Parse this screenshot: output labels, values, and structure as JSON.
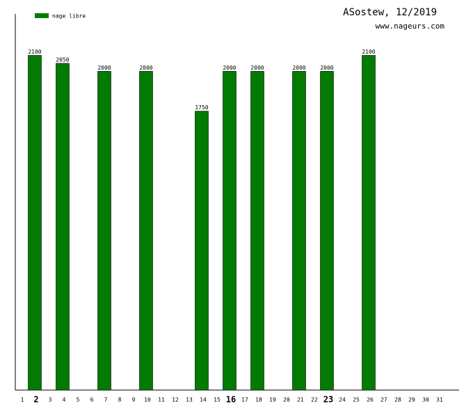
{
  "chart_data": {
    "type": "bar",
    "title": "ASostew, 12/2019",
    "subtitle": "www.nageurs.com",
    "categories": [
      "1",
      "2",
      "3",
      "4",
      "5",
      "6",
      "7",
      "8",
      "9",
      "10",
      "11",
      "12",
      "13",
      "14",
      "15",
      "16",
      "17",
      "18",
      "19",
      "20",
      "21",
      "22",
      "23",
      "24",
      "25",
      "26",
      "27",
      "28",
      "29",
      "30",
      "31"
    ],
    "series": [
      {
        "name": "nage libre",
        "color": "#037b03",
        "values": [
          null,
          2100,
          null,
          2050,
          null,
          null,
          2000,
          null,
          null,
          2000,
          null,
          null,
          null,
          1750,
          null,
          2000,
          null,
          2000,
          null,
          null,
          2000,
          null,
          2000,
          null,
          null,
          2100,
          null,
          null,
          null,
          null,
          null
        ]
      }
    ],
    "ylim": [
      0,
      2360
    ]
  }
}
